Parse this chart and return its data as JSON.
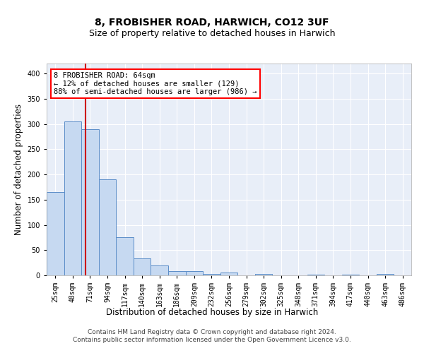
{
  "title1": "8, FROBISHER ROAD, HARWICH, CO12 3UF",
  "title2": "Size of property relative to detached houses in Harwich",
  "xlabel": "Distribution of detached houses by size in Harwich",
  "ylabel": "Number of detached properties",
  "bar_labels": [
    "25sqm",
    "48sqm",
    "71sqm",
    "94sqm",
    "117sqm",
    "140sqm",
    "163sqm",
    "186sqm",
    "209sqm",
    "232sqm",
    "256sqm",
    "279sqm",
    "302sqm",
    "325sqm",
    "348sqm",
    "371sqm",
    "394sqm",
    "417sqm",
    "440sqm",
    "463sqm",
    "486sqm"
  ],
  "bar_values": [
    165,
    305,
    290,
    190,
    75,
    33,
    20,
    9,
    8,
    3,
    5,
    0,
    3,
    0,
    0,
    2,
    0,
    2,
    0,
    3,
    0
  ],
  "bar_color": "#c6d9f1",
  "bar_edge_color": "#5b8dc8",
  "property_line_x": 1.72,
  "annotation_text": "8 FROBISHER ROAD: 64sqm\n← 12% of detached houses are smaller (129)\n88% of semi-detached houses are larger (986) →",
  "annotation_box_color": "white",
  "annotation_box_edge_color": "red",
  "vline_color": "#cc0000",
  "ylim": [
    0,
    420
  ],
  "yticks": [
    0,
    50,
    100,
    150,
    200,
    250,
    300,
    350,
    400
  ],
  "background_color": "#e8eef8",
  "grid_color": "white",
  "footer_text": "Contains HM Land Registry data © Crown copyright and database right 2024.\nContains public sector information licensed under the Open Government Licence v3.0.",
  "title1_fontsize": 10,
  "title2_fontsize": 9,
  "xlabel_fontsize": 8.5,
  "ylabel_fontsize": 8.5,
  "tick_fontsize": 7,
  "annotation_fontsize": 7.5,
  "footer_fontsize": 6.5
}
